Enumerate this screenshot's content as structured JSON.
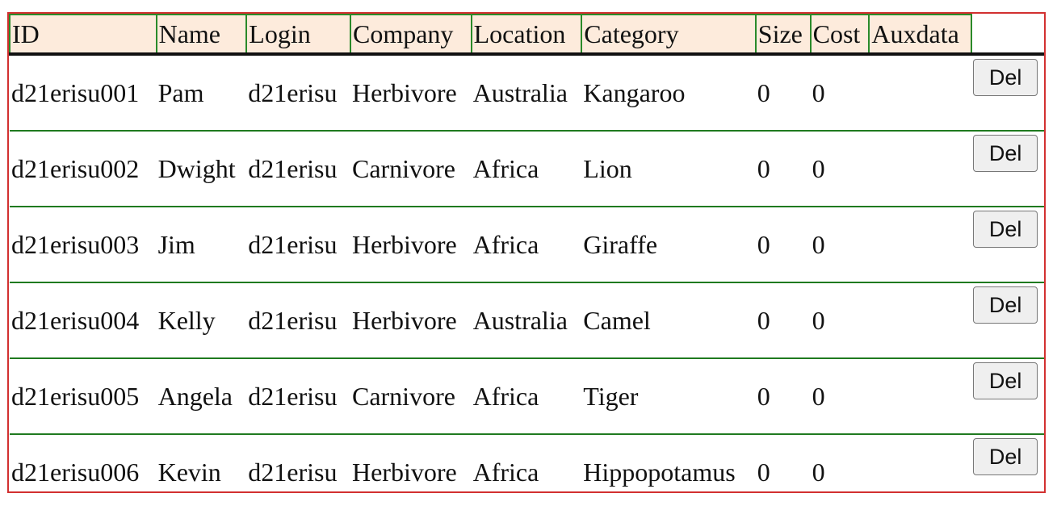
{
  "table": {
    "columns": [
      "ID",
      "Name",
      "Login",
      "Company",
      "Location",
      "Category",
      "Size",
      "Cost",
      "Auxdata"
    ],
    "delete_label": "Del",
    "rows": [
      {
        "id": "d21erisu001",
        "name": "Pam",
        "login": "d21erisu",
        "company": "Herbivore",
        "location": "Australia",
        "category": "Kangaroo",
        "size": "0",
        "cost": "0",
        "auxdata": ""
      },
      {
        "id": "d21erisu002",
        "name": "Dwight",
        "login": "d21erisu",
        "company": "Carnivore",
        "location": "Africa",
        "category": "Lion",
        "size": "0",
        "cost": "0",
        "auxdata": ""
      },
      {
        "id": "d21erisu003",
        "name": "Jim",
        "login": "d21erisu",
        "company": "Herbivore",
        "location": "Africa",
        "category": "Giraffe",
        "size": "0",
        "cost": "0",
        "auxdata": ""
      },
      {
        "id": "d21erisu004",
        "name": "Kelly",
        "login": "d21erisu",
        "company": "Herbivore",
        "location": "Australia",
        "category": "Camel",
        "size": "0",
        "cost": "0",
        "auxdata": ""
      },
      {
        "id": "d21erisu005",
        "name": "Angela",
        "login": "d21erisu",
        "company": "Carnivore",
        "location": "Africa",
        "category": "Tiger",
        "size": "0",
        "cost": "0",
        "auxdata": ""
      },
      {
        "id": "d21erisu006",
        "name": "Kevin",
        "login": "d21erisu",
        "company": "Herbivore",
        "location": "Africa",
        "category": "Hippopotamus",
        "size": "0",
        "cost": "0",
        "auxdata": ""
      }
    ]
  }
}
